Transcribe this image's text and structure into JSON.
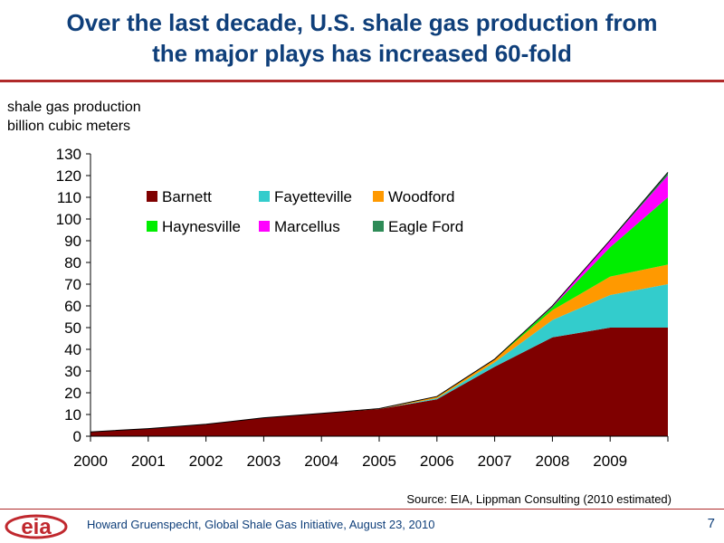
{
  "title": {
    "line1": "Over the last decade, U.S. shale gas production from",
    "line2": "the major plays has increased 60-fold"
  },
  "axis_label": {
    "line1": "shale gas production",
    "line2": "billion cubic meters"
  },
  "source": "Source: EIA, Lippman Consulting (2010 estimated)",
  "footer": {
    "logo_text": "eia",
    "presenter": "Howard Gruenspecht, Global Shale Gas Initiative, August 23, 2010",
    "page": "7"
  },
  "chart_data": {
    "type": "area",
    "stacked": true,
    "ylabel": "shale gas production billion cubic meters",
    "ylim": [
      0,
      130
    ],
    "yticks": [
      0,
      10,
      20,
      30,
      40,
      50,
      60,
      70,
      80,
      90,
      100,
      110,
      120,
      130
    ],
    "x": [
      2000,
      2001,
      2002,
      2003,
      2004,
      2005,
      2006,
      2007,
      2008,
      2009,
      2010
    ],
    "x_tick_labels": [
      "2000",
      "2001",
      "2002",
      "2003",
      "2004",
      "2005",
      "2006",
      "2007",
      "2008",
      "2009"
    ],
    "series": [
      {
        "name": "Barnett",
        "color": "#7f0000",
        "values": [
          2,
          3.5,
          5.5,
          8.5,
          10.5,
          12.5,
          17,
          32,
          45.5,
          50,
          50
        ]
      },
      {
        "name": "Fayetteville",
        "color": "#33cccc",
        "values": [
          0,
          0,
          0,
          0,
          0,
          0,
          0.5,
          2,
          8,
          15,
          20
        ]
      },
      {
        "name": "Woodford",
        "color": "#ff9900",
        "values": [
          0,
          0,
          0,
          0,
          0,
          0.2,
          0.8,
          1.5,
          4.5,
          8.5,
          9
        ]
      },
      {
        "name": "Haynesville",
        "color": "#00ee00",
        "values": [
          0,
          0,
          0,
          0,
          0,
          0,
          0,
          0,
          1.5,
          13.5,
          31
        ]
      },
      {
        "name": "Marcellus",
        "color": "#ff00ff",
        "values": [
          0,
          0,
          0,
          0,
          0,
          0,
          0,
          0,
          0.5,
          3,
          10
        ]
      },
      {
        "name": "Eagle Ford",
        "color": "#2e8b57",
        "values": [
          0,
          0,
          0,
          0,
          0,
          0,
          0,
          0,
          0,
          0.3,
          1.5
        ]
      }
    ],
    "legend": {
      "position": "top-left"
    }
  }
}
